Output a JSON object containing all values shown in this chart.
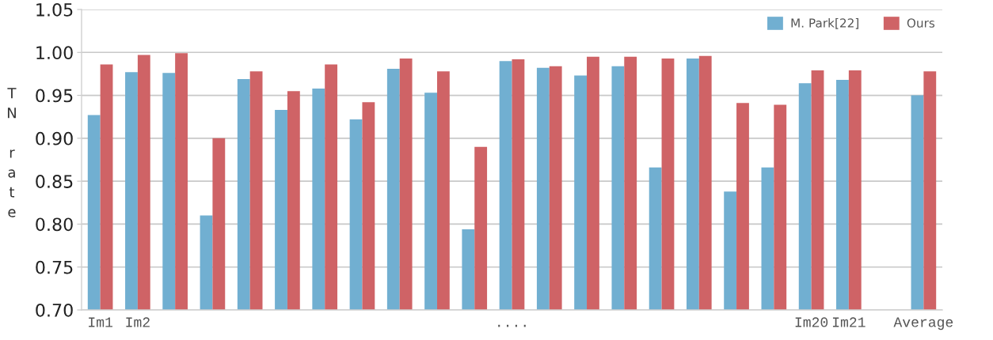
{
  "chart_data": {
    "type": "bar",
    "ylabel": "TN rate",
    "categories": [
      "Im1",
      "Im2",
      null,
      null,
      null,
      null,
      null,
      null,
      null,
      null,
      null,
      "....",
      null,
      null,
      null,
      null,
      null,
      null,
      null,
      "Im20",
      "Im21",
      null,
      "Average"
    ],
    "series": [
      {
        "name": "M. Park[22]",
        "color": "#71afd1",
        "values": [
          0.927,
          0.977,
          0.976,
          0.81,
          0.969,
          0.933,
          0.958,
          0.922,
          0.981,
          0.953,
          0.794,
          0.99,
          0.982,
          0.973,
          0.984,
          0.866,
          0.993,
          0.838,
          0.866,
          0.964,
          0.968,
          null,
          0.95
        ]
      },
      {
        "name": "Ours",
        "color": "#cf6366",
        "values": [
          0.986,
          0.997,
          0.999,
          0.9,
          0.978,
          0.955,
          0.986,
          0.942,
          0.993,
          0.978,
          0.89,
          0.992,
          0.984,
          0.995,
          0.995,
          0.993,
          0.996,
          0.941,
          0.939,
          0.979,
          0.979,
          null,
          0.978
        ]
      }
    ],
    "ylim": [
      0.7,
      1.05
    ],
    "yticks": [
      {
        "value": 0.7,
        "label": "0.70"
      },
      0.75,
      {
        "value": 0.8,
        "label": "0.80"
      },
      0.85,
      {
        "value": 0.9,
        "label": "0.90"
      },
      0.95,
      {
        "value": 1.0,
        "label": "1.00"
      },
      1.05
    ],
    "grid": "y",
    "legend": "top right"
  }
}
